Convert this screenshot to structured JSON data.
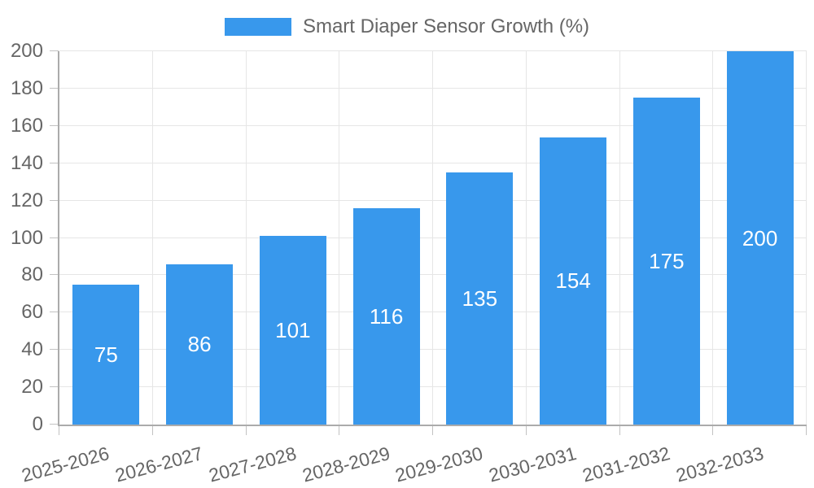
{
  "legend": {
    "label": "Smart Diaper Sensor Growth (%)"
  },
  "chart_data": {
    "type": "bar",
    "title": "Smart Diaper Sensor Growth (%)",
    "categories": [
      "2025-2026",
      "2026-2027",
      "2027-2028",
      "2028-2029",
      "2029-2030",
      "2030-2031",
      "2031-2032",
      "2032-2033"
    ],
    "values": [
      75,
      86,
      101,
      116,
      135,
      154,
      175,
      200
    ],
    "xlabel": "",
    "ylabel": "",
    "ylim": [
      0,
      200
    ],
    "ytick_step": 20,
    "yticks": [
      0,
      20,
      40,
      60,
      80,
      100,
      120,
      140,
      160,
      180,
      200
    ],
    "grid": true,
    "legend_position": "top-center",
    "bar_color": "#3898ec",
    "value_label_color": "#ffffff",
    "tick_label_color": "#666666",
    "grid_color": "#e6e6e6",
    "tick_color": "#c2c2c2",
    "axis_color": "#ababab"
  }
}
